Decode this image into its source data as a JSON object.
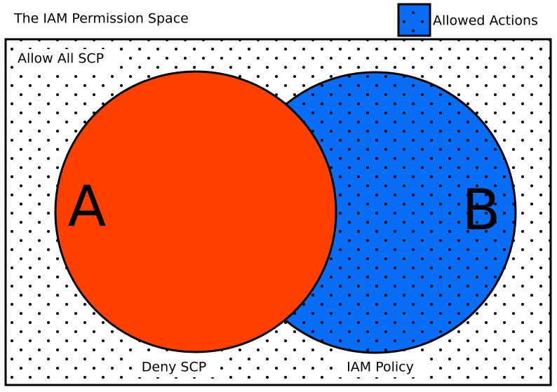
{
  "header": {
    "title": "The IAM Permission Space"
  },
  "legend": {
    "label": "Allowed Actions"
  },
  "regions": {
    "outer": "Allow All SCP",
    "deny": "Deny SCP",
    "policy": "IAM Policy"
  },
  "markers": {
    "a": "A",
    "b": "B"
  }
}
